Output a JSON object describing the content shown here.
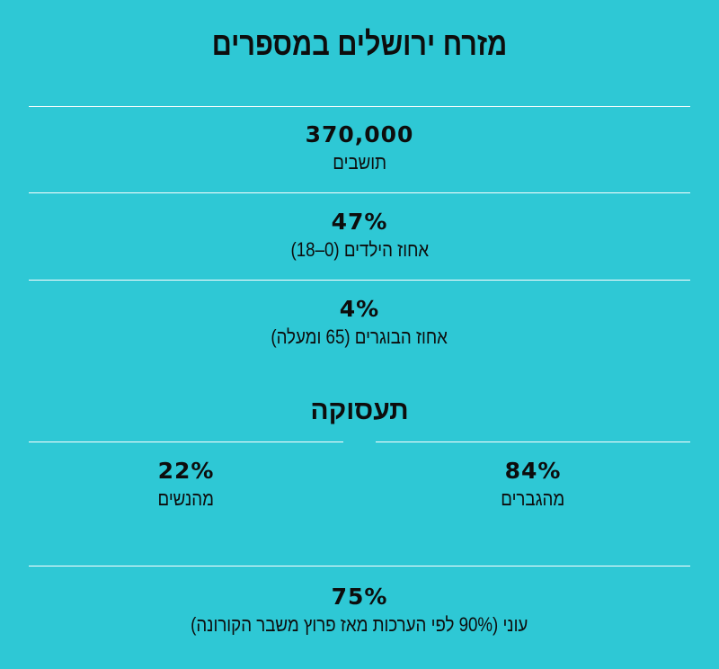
{
  "title": "מזרח ירושלים במספרים",
  "stats": [
    {
      "value": "370,000",
      "label": "תושבים"
    },
    {
      "value": "47%",
      "label": "אחוז הילדים (0–18)"
    },
    {
      "value": "4%",
      "label": "אחוז הבוגרים (65 ומעלה)"
    }
  ],
  "employment": {
    "title": "תעסוקה",
    "men": {
      "value": "84%",
      "label": "מהגברים"
    },
    "women": {
      "value": "22%",
      "label": "מהנשים"
    }
  },
  "poverty": {
    "value": "75%",
    "label": "עוני (90% לפי הערכות מאז פרוץ משבר הקורונה)"
  },
  "colors": {
    "background": "#2ec8d5",
    "rule": "#ffffff",
    "text": "#0d0d0d"
  }
}
